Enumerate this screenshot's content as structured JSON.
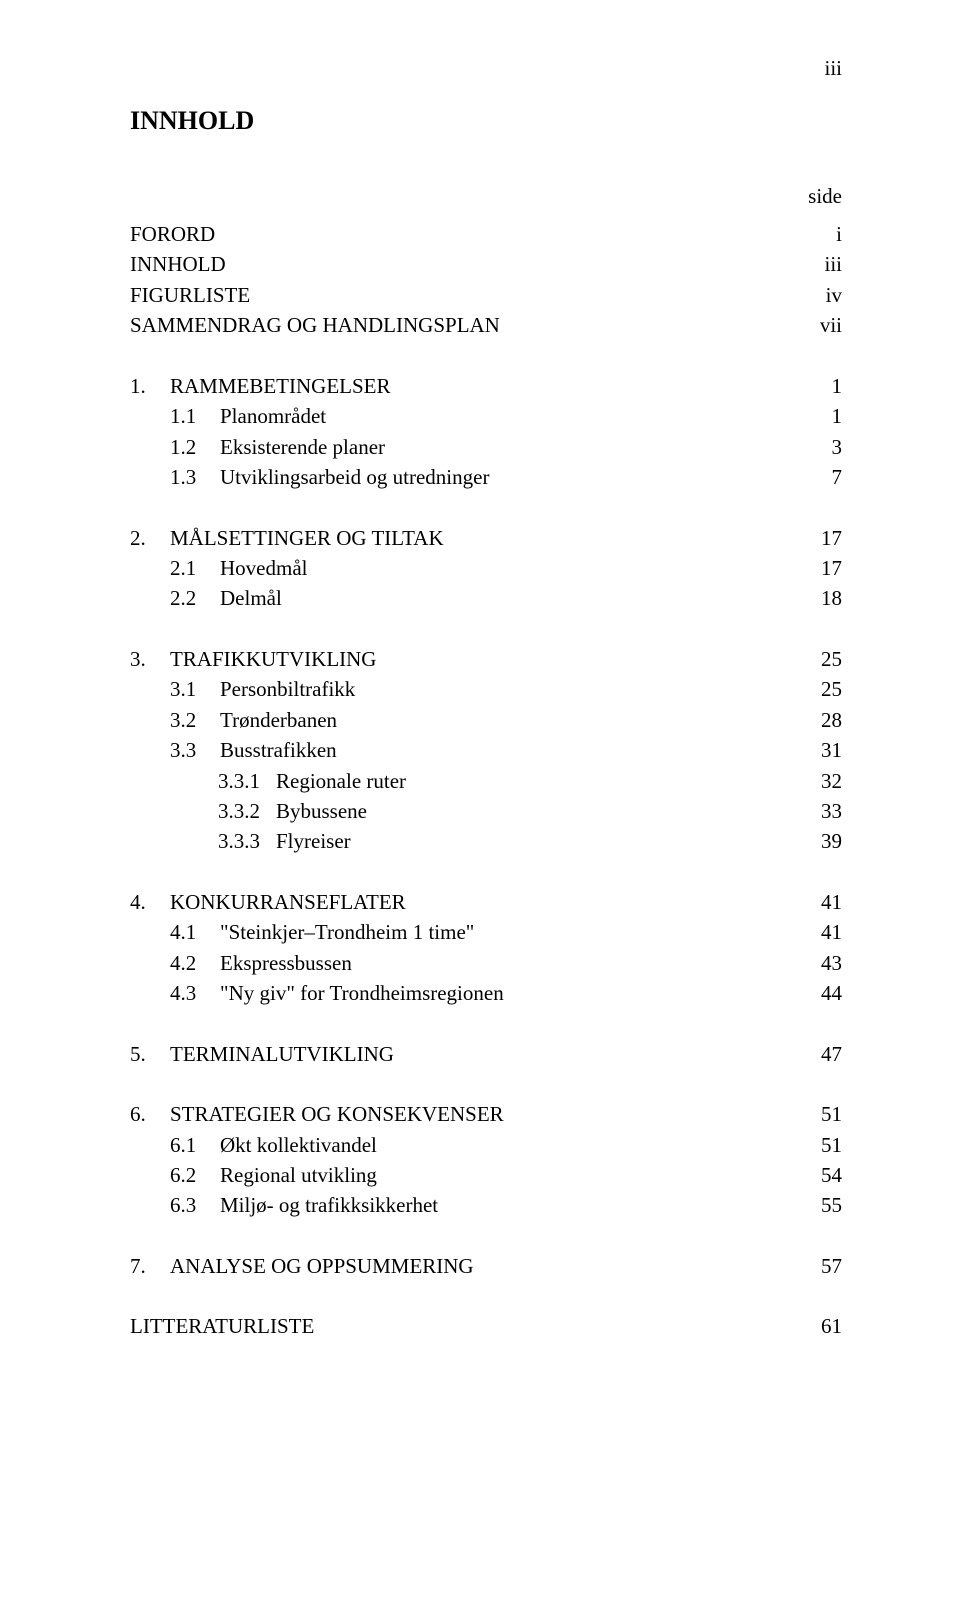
{
  "pageNumTop": "iii",
  "heading": "INNHOLD",
  "sideLabel": "side",
  "front": [
    {
      "label": "FORORD",
      "page": "i"
    },
    {
      "label": "INNHOLD",
      "page": "iii"
    },
    {
      "label": "FIGURLISTE",
      "page": "iv"
    },
    {
      "label": "SAMMENDRAG OG HANDLINGSPLAN",
      "page": "vii"
    }
  ],
  "sections": [
    {
      "num": "1.",
      "title": "RAMMEBETINGELSER",
      "page": "1",
      "subs": [
        {
          "num": "1.1",
          "title": "Planområdet",
          "page": "1"
        },
        {
          "num": "1.2",
          "title": "Eksisterende planer",
          "page": "3"
        },
        {
          "num": "1.3",
          "title": "Utviklingsarbeid og utredninger",
          "page": "7"
        }
      ]
    },
    {
      "num": "2.",
      "title": "MÅLSETTINGER OG TILTAK",
      "page": "17",
      "subs": [
        {
          "num": "2.1",
          "title": "Hovedmål",
          "page": "17"
        },
        {
          "num": "2.2",
          "title": "Delmål",
          "page": "18"
        }
      ]
    },
    {
      "num": "3.",
      "title": "TRAFIKKUTVIKLING",
      "page": "25",
      "subs": [
        {
          "num": "3.1",
          "title": "Personbiltrafikk",
          "page": "25"
        },
        {
          "num": "3.2",
          "title": "Trønderbanen",
          "page": "28"
        },
        {
          "num": "3.3",
          "title": "Busstrafikken",
          "page": "31",
          "subs": [
            {
              "num": "3.3.1",
              "title": "Regionale ruter",
              "page": "32"
            },
            {
              "num": "3.3.2",
              "title": "Bybussene",
              "page": "33"
            },
            {
              "num": "3.3.3",
              "title": "Flyreiser",
              "page": "39"
            }
          ]
        }
      ]
    },
    {
      "num": "4.",
      "title": "KONKURRANSEFLATER",
      "page": "41",
      "subs": [
        {
          "num": "4.1",
          "title": "\"Steinkjer–Trondheim 1 time\"",
          "page": "41"
        },
        {
          "num": "4.2",
          "title": "Ekspressbussen",
          "page": "43"
        },
        {
          "num": "4.3",
          "title": "\"Ny giv\" for Trondheimsregionen",
          "page": "44"
        }
      ]
    },
    {
      "num": "5.",
      "title": "TERMINALUTVIKLING",
      "page": "47",
      "subs": []
    },
    {
      "num": "6.",
      "title": "STRATEGIER OG KONSEKVENSER",
      "page": "51",
      "subs": [
        {
          "num": "6.1",
          "title": "Økt kollektivandel",
          "page": "51"
        },
        {
          "num": "6.2",
          "title": "Regional utvikling",
          "page": "54"
        },
        {
          "num": "6.3",
          "title": "Miljø- og trafikksikkerhet",
          "page": "55"
        }
      ]
    },
    {
      "num": "7.",
      "title": "ANALYSE OG OPPSUMMERING",
      "page": "57",
      "subs": []
    }
  ],
  "back": {
    "label": "LITTERATURLISTE",
    "page": "61"
  }
}
